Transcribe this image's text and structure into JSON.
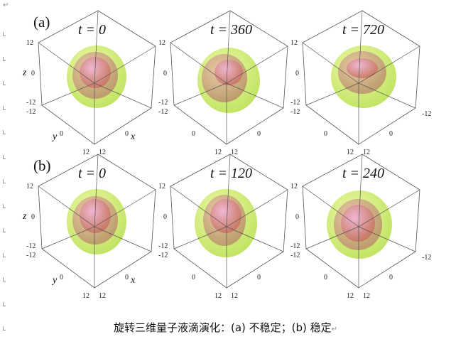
{
  "figure": {
    "rows": [
      {
        "label": "(a)",
        "panels": [
          {
            "time": "t = 0",
            "state": "unstable"
          },
          {
            "time": "t = 360",
            "state": "unstable"
          },
          {
            "time": "t = 720",
            "state": "unstable"
          }
        ]
      },
      {
        "label": "(b)",
        "panels": [
          {
            "time": "t = 0",
            "state": "stable"
          },
          {
            "time": "t = 120",
            "state": "stable"
          },
          {
            "time": "t = 240",
            "state": "stable"
          }
        ]
      }
    ],
    "ticks": {
      "max": "12",
      "mid": "0",
      "min": "-12"
    },
    "axis_labels": {
      "x": "x",
      "y": "y",
      "z": "z"
    },
    "colors": {
      "outer": "#b8e04a",
      "middle": "#b98a6a",
      "inner": "#e08ac8",
      "frame": "#555555"
    }
  },
  "caption": "旋转三维量子液滴演化：(a) 不稳定；(b) 稳定",
  "paragraph_mark": "↵"
}
